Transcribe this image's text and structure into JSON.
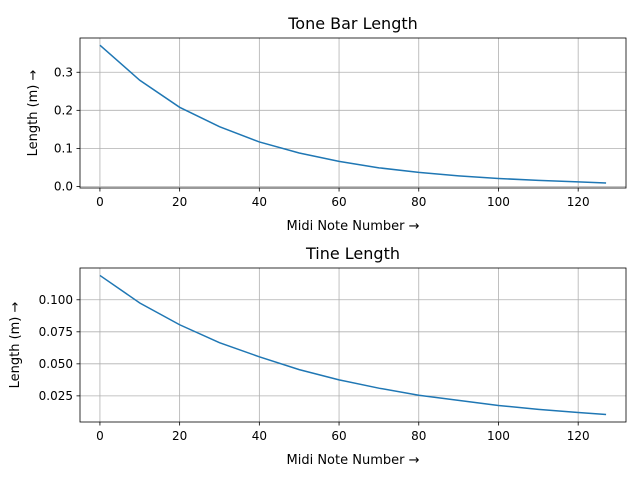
{
  "chart_data": [
    {
      "type": "line",
      "title": "Tone Bar Length",
      "xlabel": "Midi Note Number  →",
      "ylabel": "Length (m)  →",
      "xlim": [
        -5,
        132
      ],
      "ylim": [
        -0.004,
        0.39
      ],
      "xticks": [
        0,
        20,
        40,
        60,
        80,
        100,
        120
      ],
      "yticks": [
        0.0,
        0.1,
        0.2,
        0.3
      ],
      "ytick_labels": [
        "0.0",
        "0.1",
        "0.2",
        "0.3"
      ],
      "grid": true,
      "color": "#1f77b4",
      "series": [
        {
          "x": [
            0,
            10,
            20,
            30,
            40,
            50,
            60,
            70,
            80,
            90,
            100,
            110,
            120,
            127
          ],
          "values": [
            0.371,
            0.279,
            0.208,
            0.157,
            0.117,
            0.088,
            0.066,
            0.049,
            0.037,
            0.028,
            0.021,
            0.016,
            0.012,
            0.009
          ]
        }
      ]
    },
    {
      "type": "line",
      "title": "Tine Length",
      "xlabel": "Midi Note Number  →",
      "ylabel": "Length (m)  →",
      "xlim": [
        -5,
        132
      ],
      "ylim": [
        0.0046,
        0.1248
      ],
      "xticks": [
        0,
        20,
        40,
        60,
        80,
        100,
        120
      ],
      "yticks": [
        0.025,
        0.05,
        0.075,
        0.1
      ],
      "ytick_labels": [
        "0.025",
        "0.050",
        "0.075",
        "0.100"
      ],
      "grid": true,
      "color": "#1f77b4",
      "series": [
        {
          "x": [
            0,
            10,
            20,
            30,
            40,
            50,
            60,
            70,
            80,
            90,
            100,
            110,
            120,
            127
          ],
          "values": [
            0.119,
            0.0975,
            0.0805,
            0.0665,
            0.0555,
            0.0455,
            0.0375,
            0.031,
            0.0255,
            0.0215,
            0.0175,
            0.0145,
            0.012,
            0.0105
          ]
        }
      ]
    }
  ]
}
